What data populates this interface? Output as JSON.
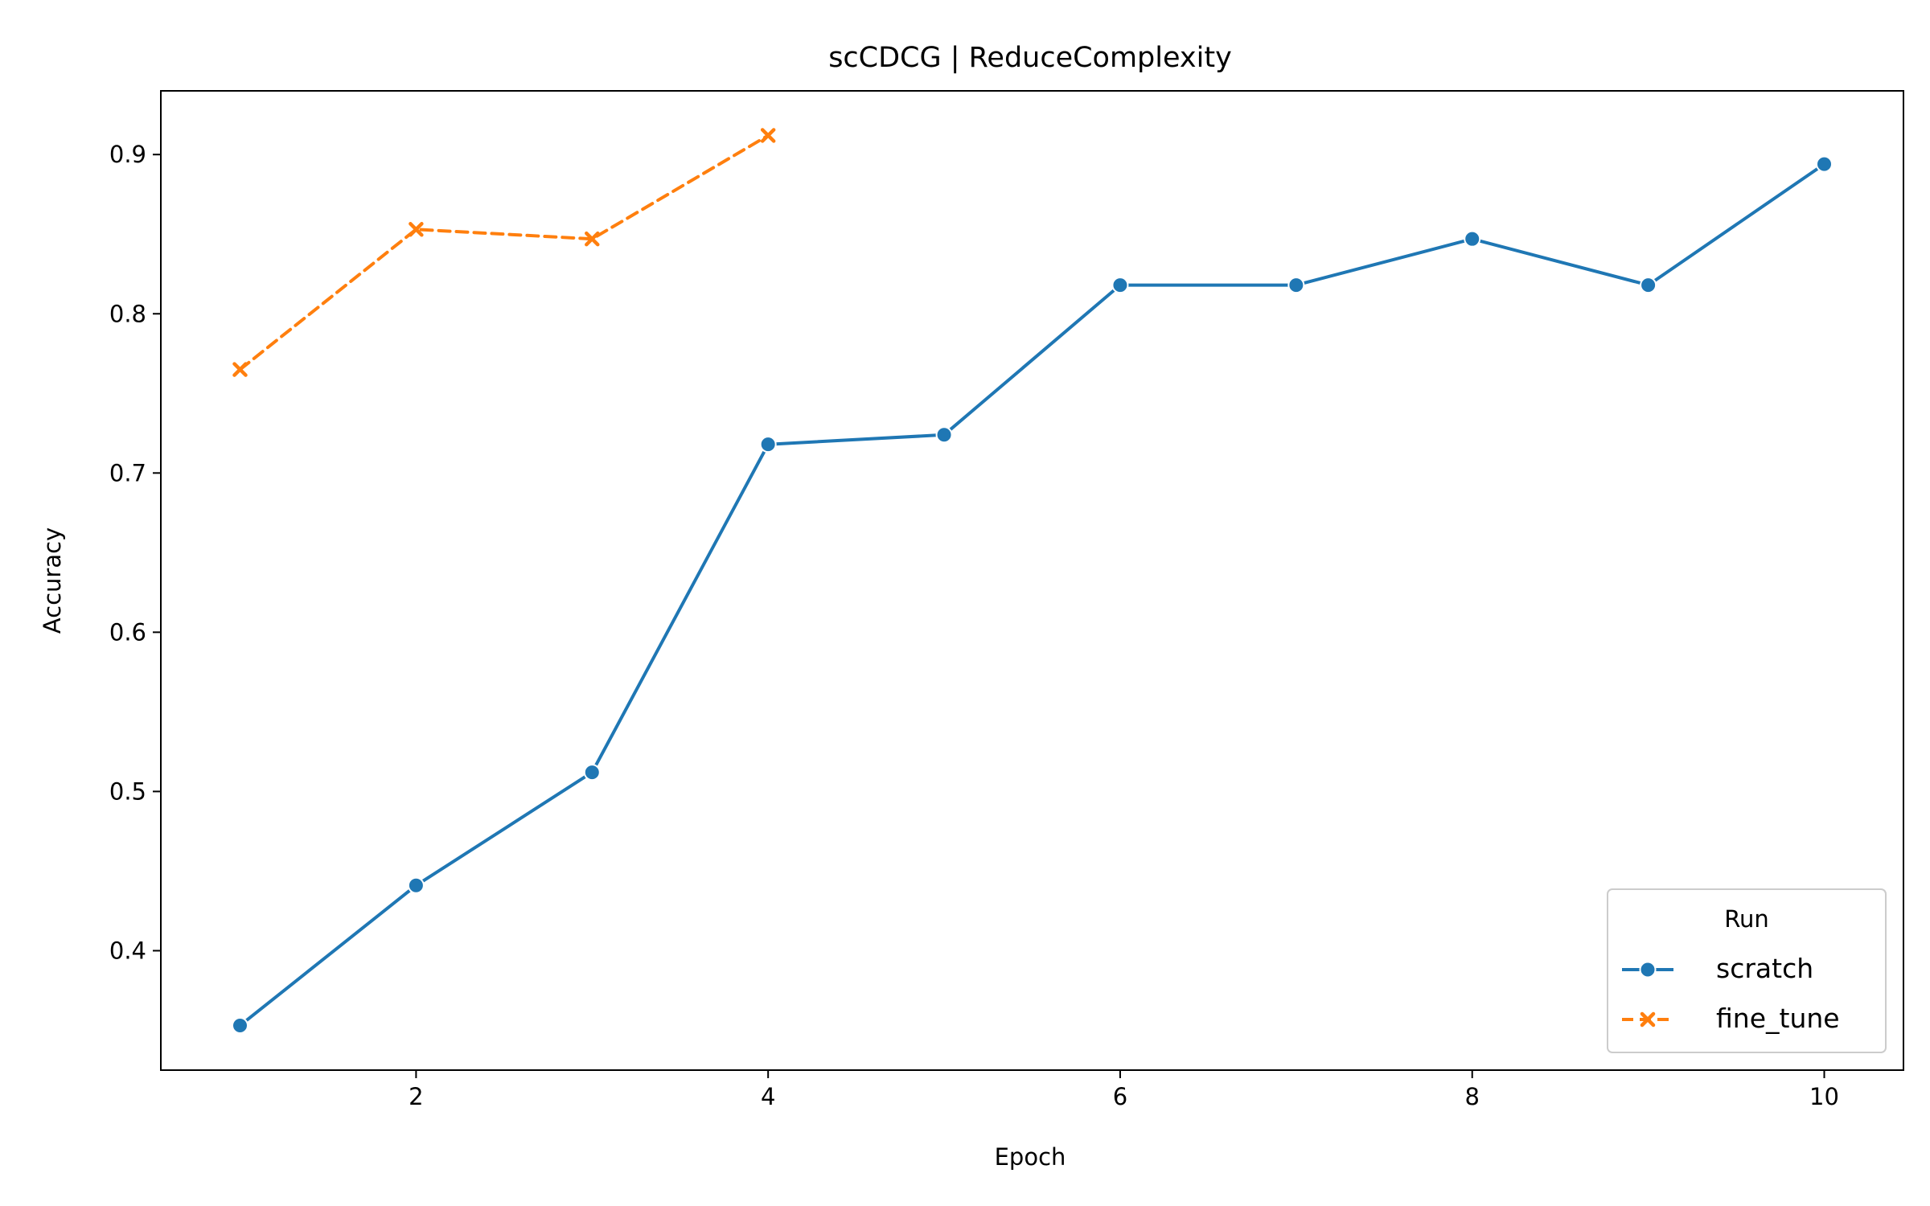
{
  "chart_data": {
    "type": "line",
    "title": "scCDCG | ReduceComplexity",
    "xlabel": "Epoch",
    "ylabel": "Accuracy",
    "xlim": [
      0.55,
      10.45
    ],
    "ylim": [
      0.325,
      0.94
    ],
    "xticks": [
      2,
      4,
      6,
      8,
      10
    ],
    "yticks": [
      0.4,
      0.5,
      0.6,
      0.7,
      0.8,
      0.9
    ],
    "xtick_labels": [
      "2",
      "4",
      "6",
      "8",
      "10"
    ],
    "ytick_labels": [
      "0.4",
      "0.5",
      "0.6",
      "0.7",
      "0.8",
      "0.9"
    ],
    "grid": false,
    "legend": {
      "title": "Run",
      "placement": "lower right"
    },
    "series": [
      {
        "name": "scratch",
        "color": "#1f77b4",
        "marker": "circle",
        "dash": "solid",
        "x": [
          1,
          2,
          3,
          4,
          5,
          6,
          7,
          8,
          9,
          10
        ],
        "values": [
          0.353,
          0.441,
          0.512,
          0.718,
          0.724,
          0.818,
          0.818,
          0.847,
          0.818,
          0.894
        ]
      },
      {
        "name": "fine_tune",
        "color": "#ff7f0e",
        "marker": "x",
        "dash": "dashed",
        "x": [
          1,
          2,
          3,
          4
        ],
        "values": [
          0.765,
          0.853,
          0.847,
          0.912
        ]
      }
    ]
  }
}
